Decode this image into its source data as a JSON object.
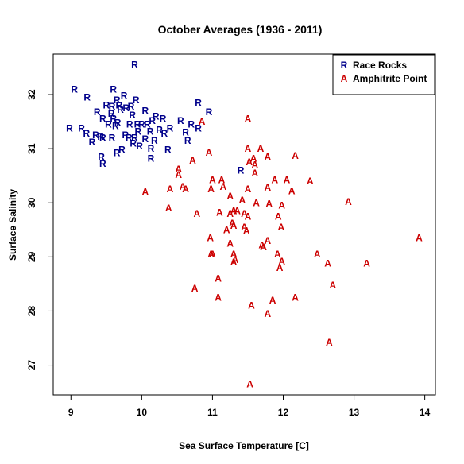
{
  "chart_data": {
    "type": "scatter",
    "title": "October Averages (1936 - 2011)",
    "xlabel": "Sea Surface Temperature [C]",
    "ylabel": "Surface Salinity",
    "xlim": [
      8.75,
      14.15
    ],
    "ylim": [
      26.45,
      32.75
    ],
    "x_ticks": [
      9,
      10,
      11,
      12,
      13,
      14
    ],
    "y_ticks": [
      27,
      28,
      29,
      30,
      31,
      32
    ],
    "legend_position": "top-right",
    "grid": false,
    "series": [
      {
        "name": "Race Rocks",
        "marker": "R",
        "color": "#00008B",
        "points": [
          [
            9.9,
            32.55
          ],
          [
            9.05,
            32.1
          ],
          [
            9.23,
            31.95
          ],
          [
            9.6,
            32.1
          ],
          [
            9.75,
            31.98
          ],
          [
            9.65,
            31.9
          ],
          [
            9.5,
            31.8
          ],
          [
            9.58,
            31.78
          ],
          [
            9.68,
            31.8
          ],
          [
            9.78,
            31.75
          ],
          [
            9.85,
            31.78
          ],
          [
            9.92,
            31.9
          ],
          [
            9.37,
            31.68
          ],
          [
            9.57,
            31.65
          ],
          [
            9.7,
            31.72
          ],
          [
            9.45,
            31.55
          ],
          [
            9.6,
            31.55
          ],
          [
            9.53,
            31.45
          ],
          [
            9.66,
            31.48
          ],
          [
            9.87,
            31.62
          ],
          [
            10.05,
            31.7
          ],
          [
            10.2,
            31.6
          ],
          [
            10.3,
            31.55
          ],
          [
            10.15,
            31.52
          ],
          [
            10.08,
            31.45
          ],
          [
            9.94,
            31.45
          ],
          [
            9.83,
            31.45
          ],
          [
            8.98,
            31.38
          ],
          [
            9.15,
            31.38
          ],
          [
            9.63,
            31.42
          ],
          [
            9.95,
            31.32
          ],
          [
            10.12,
            31.32
          ],
          [
            10.25,
            31.35
          ],
          [
            10.4,
            31.38
          ],
          [
            10.55,
            31.52
          ],
          [
            10.7,
            31.45
          ],
          [
            10.8,
            31.38
          ],
          [
            9.22,
            31.28
          ],
          [
            9.35,
            31.25
          ],
          [
            9.45,
            31.2
          ],
          [
            9.58,
            31.2
          ],
          [
            9.77,
            31.25
          ],
          [
            9.9,
            31.2
          ],
          [
            10.05,
            31.18
          ],
          [
            10.18,
            31.15
          ],
          [
            10.32,
            31.28
          ],
          [
            10.62,
            31.3
          ],
          [
            9.3,
            31.12
          ],
          [
            9.42,
            31.22
          ],
          [
            9.88,
            31.1
          ],
          [
            10.13,
            31.0
          ],
          [
            10.37,
            30.98
          ],
          [
            10.65,
            31.15
          ],
          [
            9.72,
            30.98
          ],
          [
            9.97,
            31.05
          ],
          [
            9.43,
            30.85
          ],
          [
            9.65,
            30.92
          ],
          [
            10.13,
            30.82
          ],
          [
            9.45,
            30.72
          ],
          [
            10.8,
            31.85
          ],
          [
            10.95,
            31.68
          ],
          [
            11.4,
            30.6
          ],
          [
            9.82,
            31.2
          ],
          [
            10.0,
            31.45
          ]
        ]
      },
      {
        "name": "Amphitrite Point",
        "marker": "A",
        "color": "#CC0000",
        "points": [
          [
            11.5,
            31.55
          ],
          [
            10.85,
            31.5
          ],
          [
            10.95,
            30.93
          ],
          [
            11.5,
            31.0
          ],
          [
            11.68,
            31.0
          ],
          [
            11.78,
            30.85
          ],
          [
            11.58,
            30.82
          ],
          [
            11.52,
            30.75
          ],
          [
            11.6,
            30.7
          ],
          [
            10.72,
            30.78
          ],
          [
            12.17,
            30.87
          ],
          [
            11.6,
            30.55
          ],
          [
            10.52,
            30.62
          ],
          [
            10.52,
            30.52
          ],
          [
            11.13,
            30.42
          ],
          [
            11.0,
            30.42
          ],
          [
            11.88,
            30.42
          ],
          [
            12.05,
            30.42
          ],
          [
            12.38,
            30.4
          ],
          [
            10.98,
            30.25
          ],
          [
            10.4,
            30.25
          ],
          [
            10.62,
            30.25
          ],
          [
            10.58,
            30.3
          ],
          [
            10.05,
            30.2
          ],
          [
            11.15,
            30.3
          ],
          [
            11.5,
            30.25
          ],
          [
            11.78,
            30.28
          ],
          [
            12.12,
            30.22
          ],
          [
            11.25,
            30.12
          ],
          [
            11.42,
            30.05
          ],
          [
            11.62,
            30.0
          ],
          [
            11.8,
            29.98
          ],
          [
            11.98,
            29.95
          ],
          [
            12.92,
            30.02
          ],
          [
            10.38,
            29.9
          ],
          [
            10.78,
            29.8
          ],
          [
            11.3,
            29.85
          ],
          [
            11.35,
            29.85
          ],
          [
            11.45,
            29.8
          ],
          [
            11.1,
            29.82
          ],
          [
            11.25,
            29.8
          ],
          [
            11.5,
            29.75
          ],
          [
            11.93,
            29.75
          ],
          [
            11.28,
            29.62
          ],
          [
            11.3,
            29.58
          ],
          [
            11.45,
            29.55
          ],
          [
            11.48,
            29.48
          ],
          [
            11.97,
            29.55
          ],
          [
            11.2,
            29.5
          ],
          [
            10.97,
            29.35
          ],
          [
            11.78,
            29.3
          ],
          [
            11.7,
            29.22
          ],
          [
            11.72,
            29.18
          ],
          [
            11.25,
            29.25
          ],
          [
            13.92,
            29.35
          ],
          [
            10.98,
            29.05
          ],
          [
            11.0,
            29.05
          ],
          [
            11.3,
            29.05
          ],
          [
            11.32,
            28.95
          ],
          [
            11.3,
            28.9
          ],
          [
            11.92,
            29.05
          ],
          [
            12.48,
            29.05
          ],
          [
            11.98,
            28.92
          ],
          [
            11.95,
            28.8
          ],
          [
            12.63,
            28.88
          ],
          [
            13.18,
            28.88
          ],
          [
            11.08,
            28.6
          ],
          [
            12.7,
            28.48
          ],
          [
            10.75,
            28.42
          ],
          [
            11.08,
            28.25
          ],
          [
            12.17,
            28.25
          ],
          [
            11.55,
            28.1
          ],
          [
            11.85,
            28.2
          ],
          [
            11.78,
            27.95
          ],
          [
            12.65,
            27.42
          ],
          [
            11.53,
            26.65
          ]
        ]
      }
    ]
  }
}
